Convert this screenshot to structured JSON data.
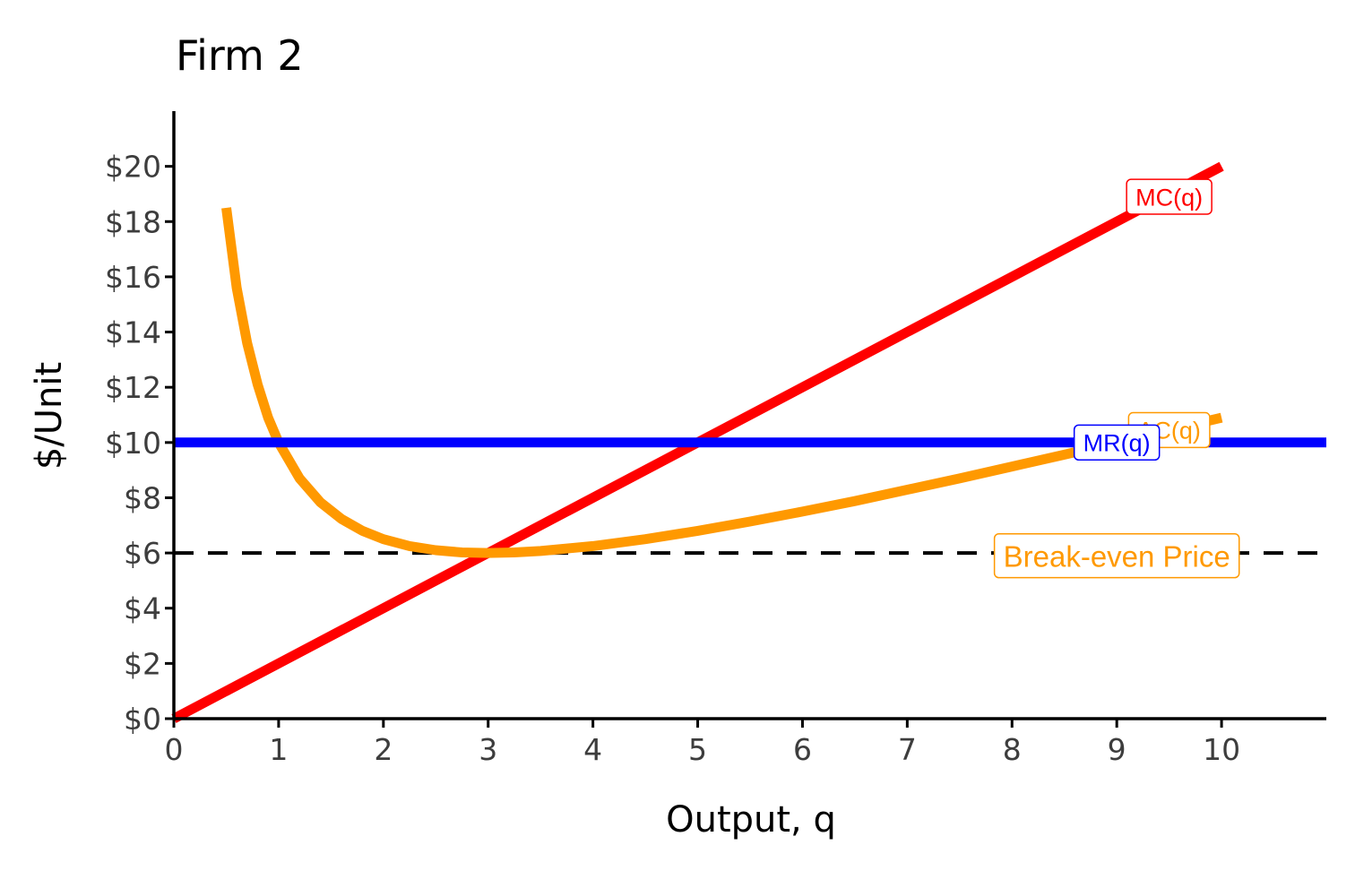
{
  "chart_data": {
    "type": "line",
    "title": "Firm 2",
    "xlabel": "Output, q",
    "ylabel": "$/Unit",
    "xlim": [
      0,
      11
    ],
    "ylim": [
      0,
      22
    ],
    "x_ticks": [
      0,
      1,
      2,
      3,
      4,
      5,
      6,
      7,
      8,
      9,
      10
    ],
    "x_tick_labels": [
      "0",
      "1",
      "2",
      "3",
      "4",
      "5",
      "6",
      "7",
      "8",
      "9",
      "10"
    ],
    "y_ticks": [
      0,
      2,
      4,
      6,
      8,
      10,
      12,
      14,
      16,
      18,
      20
    ],
    "y_tick_labels": [
      "$0",
      "$2",
      "$4",
      "$6",
      "$8",
      "$10",
      "$12",
      "$14",
      "$16",
      "$18",
      "$20"
    ],
    "grid": false,
    "legend": "none",
    "series": [
      {
        "name": "MC(q)",
        "color": "#ff0000",
        "x": [
          0,
          10
        ],
        "y": [
          0,
          20
        ]
      },
      {
        "name": "AC(q)",
        "color": "#ff9900",
        "x": [
          0.5,
          0.6,
          0.7,
          0.8,
          0.9,
          1.0,
          1.2,
          1.4,
          1.6,
          1.8,
          2.0,
          2.25,
          2.5,
          2.75,
          3.0,
          3.25,
          3.5,
          4.0,
          4.5,
          5.0,
          5.5,
          6.0,
          6.5,
          7.0,
          7.5,
          8.0,
          8.5,
          9.0,
          9.5,
          10.0
        ],
        "y": [
          18.5,
          15.6,
          13.6,
          12.1,
          10.9,
          10.0,
          8.7,
          7.83,
          7.23,
          6.8,
          6.5,
          6.25,
          6.1,
          6.02,
          6.0,
          6.02,
          6.07,
          6.25,
          6.5,
          6.8,
          7.14,
          7.5,
          7.88,
          8.29,
          8.7,
          9.13,
          9.56,
          10.0,
          10.45,
          10.9
        ]
      },
      {
        "name": "MR(q)",
        "color": "#0000ff",
        "x": [
          0,
          11
        ],
        "y": [
          10,
          10
        ]
      },
      {
        "name": "Break-even Price",
        "color": "#000000",
        "style": "dashed",
        "x": [
          0,
          11
        ],
        "y": [
          6,
          6
        ]
      }
    ],
    "annotations": [
      {
        "text": "MC(q)",
        "x": 9.5,
        "y": 18.9,
        "color": "#ff0000"
      },
      {
        "text": "AC(q)",
        "x": 9.5,
        "y": 10.45,
        "color": "#ff9900"
      },
      {
        "text": "MR(q)",
        "x": 9.0,
        "y": 10.0,
        "color": "#0000ff"
      },
      {
        "text": "Break-even Price",
        "x": 9.0,
        "y": 5.9,
        "color": "#ff9900"
      }
    ]
  }
}
